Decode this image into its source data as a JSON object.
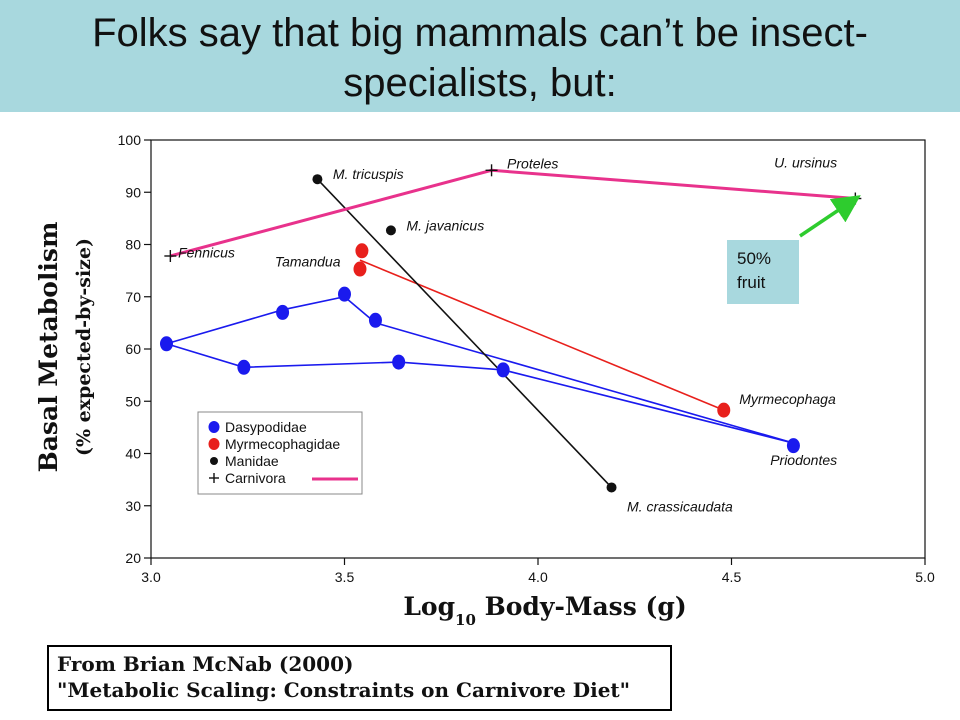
{
  "slide": {
    "title_line1": "Folks say that big mammals can’t be insect-",
    "title_line2": "specialists, but:",
    "fruit_note_line1": "50%",
    "fruit_note_line2": "fruit",
    "citation_line1": "From Brian McNab (2000)",
    "citation_line2": "\"Metabolic Scaling: Constraints on Carnivore Diet\""
  },
  "colors": {
    "title_bg": "#a8d8de",
    "dasypodidae": "#1a1aee",
    "myrmecophagidae": "#e8201c",
    "manidae": "#111111",
    "carnivora": "#e8328c",
    "arrow": "#2ecc2e"
  },
  "chart_data": {
    "type": "scatter",
    "ylabel": "Basal Metabolism",
    "ylabel_sub": "(% expected-by-size)",
    "xlabel_pre": "Log",
    "xlabel_sub": "10",
    "xlabel_post": " Body-Mass (g)",
    "xlim": [
      3.0,
      5.0
    ],
    "ylim": [
      20,
      100
    ],
    "xticks": [
      "3.0",
      "3.5",
      "4.0",
      "4.5",
      "5.0"
    ],
    "yticks": [
      "20",
      "30",
      "40",
      "50",
      "60",
      "70",
      "80",
      "90",
      "100"
    ],
    "grid": false,
    "legend_position": "lower-left",
    "series": [
      {
        "name": "Dasypodidae",
        "color": "#1a1aee",
        "marker": "blob",
        "points": [
          {
            "x": 3.04,
            "y": 61
          },
          {
            "x": 3.24,
            "y": 56.5
          },
          {
            "x": 3.34,
            "y": 67
          },
          {
            "x": 3.5,
            "y": 70.5
          },
          {
            "x": 3.58,
            "y": 65.5
          },
          {
            "x": 3.64,
            "y": 57.5
          },
          {
            "x": 3.91,
            "y": 56
          },
          {
            "x": 4.66,
            "y": 41.5
          }
        ],
        "lines": [
          [
            [
              3.04,
              61
            ],
            [
              3.34,
              67.5
            ],
            [
              3.5,
              70
            ],
            [
              3.58,
              65
            ],
            [
              4.66,
              42
            ]
          ],
          [
            [
              3.04,
              61
            ],
            [
              3.24,
              56.5
            ],
            [
              3.64,
              57.5
            ],
            [
              3.91,
              56
            ],
            [
              4.66,
              42
            ]
          ]
        ]
      },
      {
        "name": "Myrmecophagidae",
        "color": "#e8201c",
        "marker": "blob",
        "points": [
          {
            "x": 3.545,
            "y": 78.8
          },
          {
            "x": 3.54,
            "y": 75.3
          },
          {
            "x": 4.48,
            "y": 48.3
          }
        ],
        "lines": [
          [
            [
              3.54,
              77
            ],
            [
              4.48,
              48.3
            ]
          ]
        ]
      },
      {
        "name": "Manidae",
        "color": "#111111",
        "marker": "dot",
        "points": [
          {
            "x": 3.43,
            "y": 92.5
          },
          {
            "x": 3.62,
            "y": 82.7
          },
          {
            "x": 4.19,
            "y": 33.5
          }
        ],
        "lines": [
          [
            [
              3.43,
              92.5
            ],
            [
              4.19,
              33.5
            ]
          ]
        ]
      },
      {
        "name": "Carnivora",
        "color": "#e8328c",
        "marker": "plus",
        "points": [
          {
            "x": 3.05,
            "y": 77.8
          },
          {
            "x": 3.88,
            "y": 94.2
          },
          {
            "x": 4.82,
            "y": 88.8
          }
        ],
        "lines": [
          [
            [
              3.05,
              77.8
            ],
            [
              3.88,
              94.2
            ],
            [
              4.82,
              88.8
            ]
          ]
        ]
      }
    ],
    "annotations": [
      {
        "text": "Fennicus",
        "x": 3.07,
        "y": 77.5,
        "anchor": "start"
      },
      {
        "text": "M. tricuspis",
        "x": 3.47,
        "y": 92.5,
        "anchor": "start"
      },
      {
        "text": "Proteles",
        "x": 3.92,
        "y": 94.5,
        "anchor": "start"
      },
      {
        "text": "U. ursinus",
        "x": 4.61,
        "y": 94.7,
        "anchor": "start"
      },
      {
        "text": "M. javanicus",
        "x": 3.66,
        "y": 82.7,
        "anchor": "start"
      },
      {
        "text": "Tamandua",
        "x": 3.32,
        "y": 75.8,
        "anchor": "start"
      },
      {
        "text": "Myrmecophaga",
        "x": 4.52,
        "y": 49.5,
        "anchor": "start"
      },
      {
        "text": "Priodontes",
        "x": 4.6,
        "y": 37.8,
        "anchor": "start"
      },
      {
        "text": "M. crassicaudata",
        "x": 4.23,
        "y": 28.9,
        "anchor": "start"
      }
    ]
  }
}
